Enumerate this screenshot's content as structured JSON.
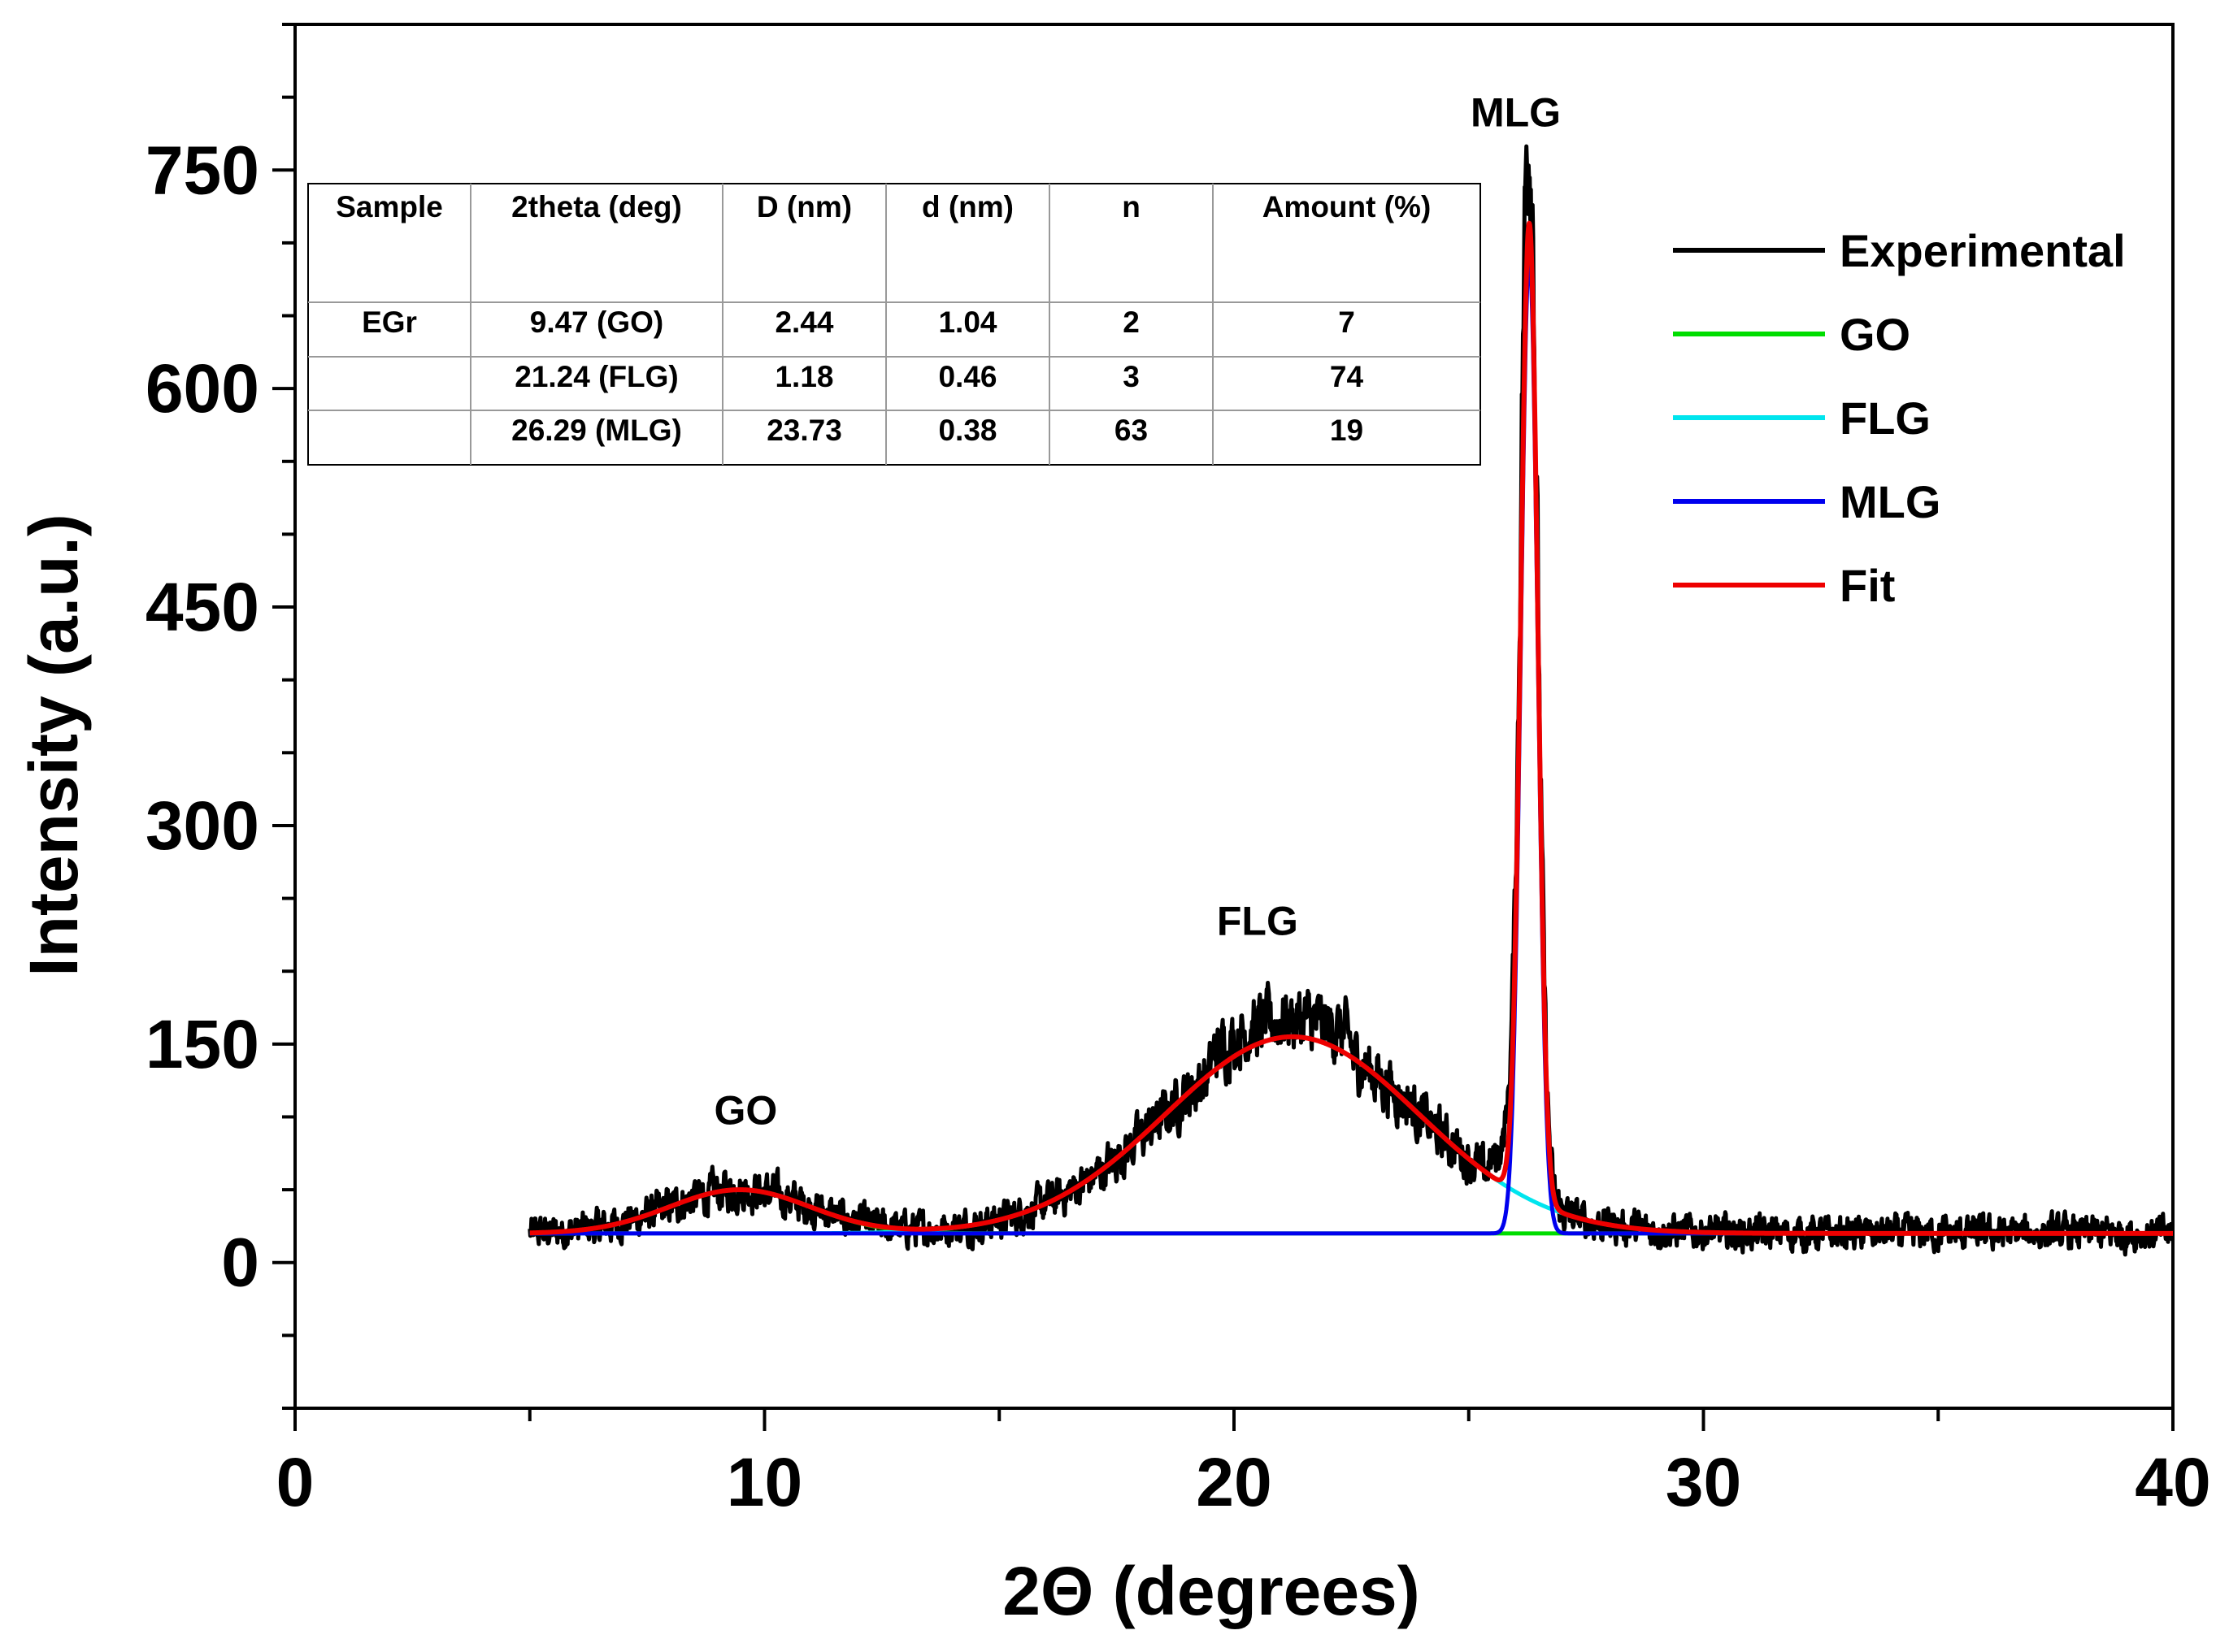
{
  "chart_data": {
    "type": "line",
    "title": "",
    "xlabel": "2Θ (degrees)",
    "ylabel": "Intensity (a.u.)",
    "xlim": [
      0,
      40
    ],
    "ylim": [
      -100,
      850
    ],
    "x_ticks": [
      0,
      10,
      20,
      30,
      40
    ],
    "x_tick_labels": [
      "0",
      "10",
      "20",
      "30",
      "40"
    ],
    "y_ticks": [
      0,
      150,
      300,
      450,
      600,
      750
    ],
    "y_tick_labels": [
      "0",
      "150",
      "300",
      "450",
      "600",
      "750"
    ],
    "grid": false,
    "legend_position": "top-right",
    "baseline": 20,
    "peaks": [
      {
        "label": "GO",
        "center": 9.47,
        "amplitude": 30,
        "sigma": 1.5
      },
      {
        "label": "FLG",
        "center": 21.24,
        "amplitude": 135,
        "sigma": 2.7
      },
      {
        "label": "MLG",
        "center": 26.29,
        "amplitude": 670,
        "sigma": 0.18
      }
    ],
    "series": [
      {
        "name": "Experimental",
        "color": "#000000",
        "x_range": [
          5,
          40
        ],
        "values": "noisy measured pattern: ~20 baseline, GO hump ~50 near 9.5, FLG broad maximum ~165 near 21, MLG sharp peak ~750 at 26.3"
      },
      {
        "name": "GO",
        "color": "#00dd00",
        "x_range": [
          5,
          40
        ]
      },
      {
        "name": "FLG",
        "color": "#00e5ee",
        "x_range": [
          5,
          40
        ]
      },
      {
        "name": "MLG",
        "color": "#0000ee",
        "x_range": [
          5,
          40
        ]
      },
      {
        "name": "Fit",
        "color": "#ee0000",
        "x_range": [
          5,
          40
        ]
      }
    ],
    "annotations": [
      {
        "text": "GO",
        "x": 9.6,
        "y": 95
      },
      {
        "text": "FLG",
        "x": 20.5,
        "y": 225
      },
      {
        "text": "MLG",
        "x": 26.0,
        "y": 780
      }
    ]
  },
  "table": {
    "headers": [
      "Sample",
      "2theta (deg)",
      "D (nm)",
      "d (nm)",
      "n",
      "Amount (%)"
    ],
    "rows": [
      [
        "EGr",
        "9.47 (GO)",
        "2.44",
        "1.04",
        "2",
        "7"
      ],
      [
        "",
        "21.24 (FLG)",
        "1.18",
        "0.46",
        "3",
        "74"
      ],
      [
        "",
        "26.29 (MLG)",
        "23.73",
        "0.38",
        "63",
        "19"
      ]
    ]
  }
}
